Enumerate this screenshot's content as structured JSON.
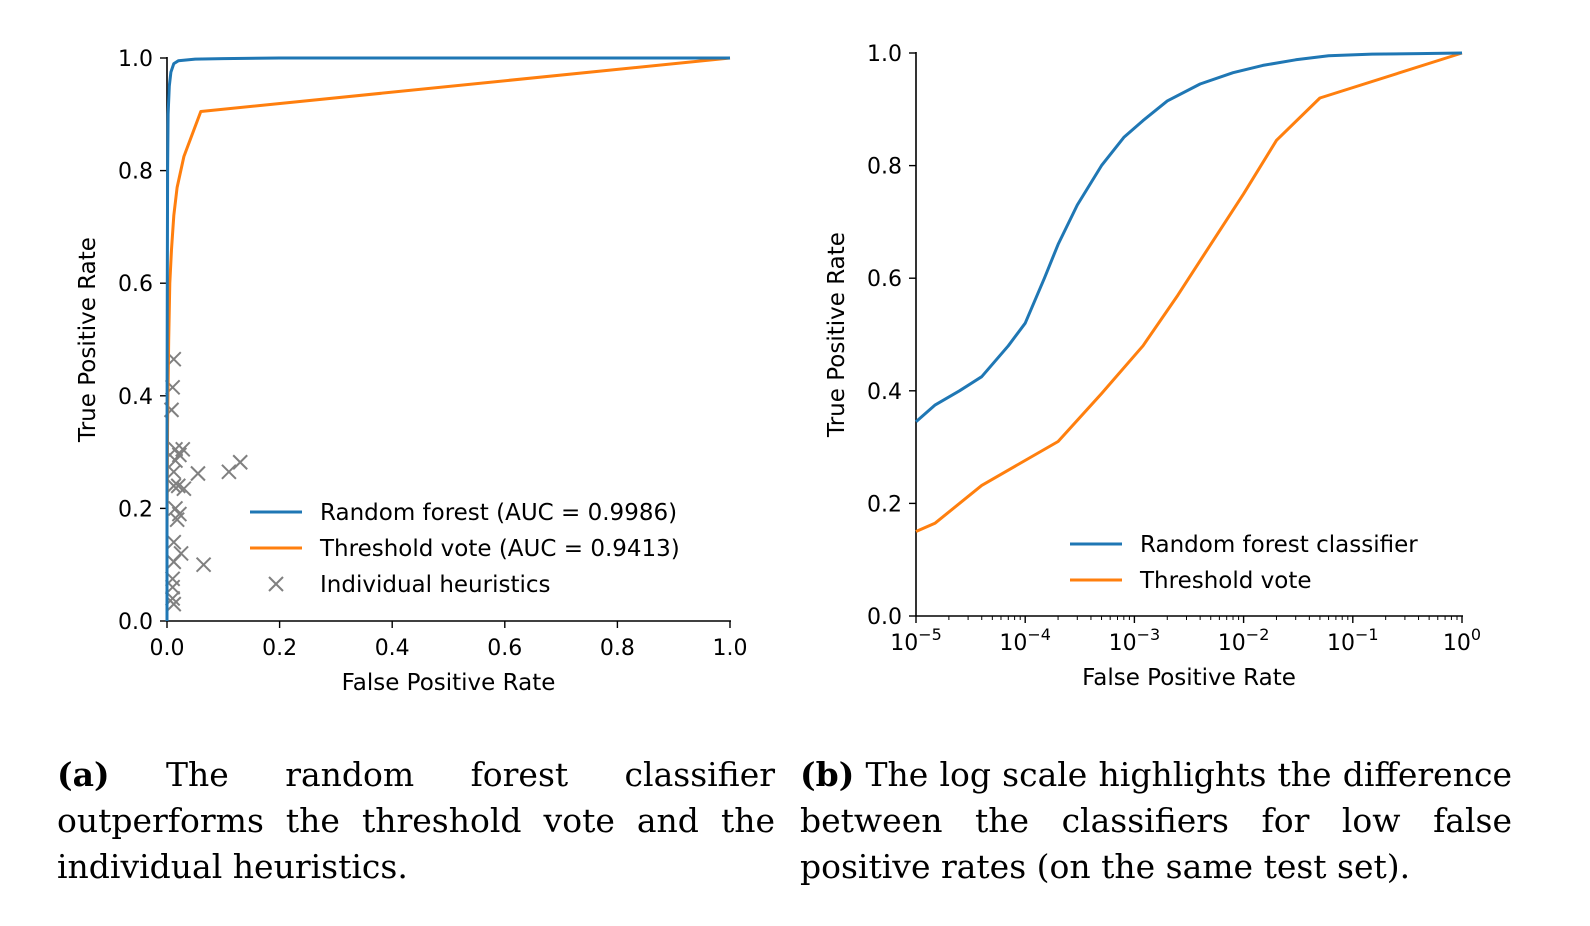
{
  "colors": {
    "blue": "#1f77b4",
    "orange": "#ff7f0e",
    "gray": "#808080"
  },
  "captions": {
    "a": {
      "label": "(a)",
      "text": "The random forest classifier outperforms the threshold vote and the individual heuristics."
    },
    "b": {
      "label": "(b)",
      "text": "The log scale highlights the difference between the classifiers for low false positive rates (on the same test set)."
    }
  },
  "chart_data": [
    {
      "type": "line",
      "xlabel": "False Positive Rate",
      "ylabel": "True Positive Rate",
      "xscale": "linear",
      "xlim": [
        0,
        1
      ],
      "ylim": [
        0,
        1
      ],
      "xticks": [
        "0.0",
        "0.2",
        "0.4",
        "0.6",
        "0.8",
        "1.0"
      ],
      "yticks": [
        "0.0",
        "0.2",
        "0.4",
        "0.6",
        "0.8",
        "1.0"
      ],
      "legend_position": "lower-right",
      "series": [
        {
          "name": "Random forest (AUC = 0.9986)",
          "color": "#1f77b4",
          "points": [
            [
              0,
              0
            ],
            [
              0,
              0.3
            ],
            [
              0.0005,
              0.6
            ],
            [
              0.001,
              0.8
            ],
            [
              0.002,
              0.9
            ],
            [
              0.004,
              0.95
            ],
            [
              0.007,
              0.975
            ],
            [
              0.012,
              0.99
            ],
            [
              0.02,
              0.995
            ],
            [
              0.05,
              0.998
            ],
            [
              0.1,
              0.999
            ],
            [
              0.2,
              1.0
            ],
            [
              1.0,
              1.0
            ]
          ]
        },
        {
          "name": "Threshold vote (AUC = 0.9413)",
          "color": "#ff7f0e",
          "points": [
            [
              0,
              0
            ],
            [
              0,
              0.15
            ],
            [
              0.001,
              0.35
            ],
            [
              0.003,
              0.5
            ],
            [
              0.005,
              0.6
            ],
            [
              0.008,
              0.66
            ],
            [
              0.012,
              0.72
            ],
            [
              0.018,
              0.77
            ],
            [
              0.03,
              0.825
            ],
            [
              0.06,
              0.905
            ],
            [
              1.0,
              1.0
            ]
          ]
        }
      ],
      "scatter": {
        "name": "Individual heuristics",
        "marker": "x",
        "color": "#808080",
        "points": [
          [
            0.012,
            0.465
          ],
          [
            0.01,
            0.415
          ],
          [
            0.008,
            0.375
          ],
          [
            0.015,
            0.305
          ],
          [
            0.028,
            0.305
          ],
          [
            0.022,
            0.295
          ],
          [
            0.015,
            0.285
          ],
          [
            0.012,
            0.265
          ],
          [
            0.055,
            0.262
          ],
          [
            0.11,
            0.265
          ],
          [
            0.13,
            0.282
          ],
          [
            0.012,
            0.24
          ],
          [
            0.02,
            0.24
          ],
          [
            0.03,
            0.235
          ],
          [
            0.015,
            0.2
          ],
          [
            0.022,
            0.19
          ],
          [
            0.018,
            0.18
          ],
          [
            0.012,
            0.14
          ],
          [
            0.025,
            0.12
          ],
          [
            0.012,
            0.105
          ],
          [
            0.065,
            0.1
          ],
          [
            0.01,
            0.075
          ],
          [
            0.01,
            0.06
          ],
          [
            0.01,
            0.04
          ],
          [
            0.012,
            0.03
          ]
        ]
      }
    },
    {
      "type": "line",
      "xlabel": "False Positive Rate",
      "ylabel": "True Positive Rate",
      "xscale": "log",
      "xlim": [
        1e-05,
        1
      ],
      "ylim": [
        0,
        1
      ],
      "xticks": [
        "10^-5",
        "10^-4",
        "10^-3",
        "10^-2",
        "10^-1",
        "10^0"
      ],
      "yticks": [
        "0.0",
        "0.2",
        "0.4",
        "0.6",
        "0.8",
        "1.0"
      ],
      "legend_position": "lower-right",
      "series": [
        {
          "name": "Random forest classifier",
          "color": "#1f77b4",
          "points": [
            [
              1e-05,
              0.345
            ],
            [
              1.5e-05,
              0.375
            ],
            [
              2.5e-05,
              0.4
            ],
            [
              4e-05,
              0.425
            ],
            [
              7e-05,
              0.48
            ],
            [
              0.0001,
              0.52
            ],
            [
              0.00015,
              0.6
            ],
            [
              0.0002,
              0.66
            ],
            [
              0.0003,
              0.73
            ],
            [
              0.0005,
              0.8
            ],
            [
              0.0008,
              0.85
            ],
            [
              0.0012,
              0.88
            ],
            [
              0.002,
              0.915
            ],
            [
              0.004,
              0.945
            ],
            [
              0.008,
              0.965
            ],
            [
              0.015,
              0.978
            ],
            [
              0.03,
              0.988
            ],
            [
              0.06,
              0.995
            ],
            [
              0.15,
              0.998
            ],
            [
              0.4,
              0.999
            ],
            [
              1,
              1.0
            ]
          ]
        },
        {
          "name": "Threshold vote",
          "color": "#ff7f0e",
          "points": [
            [
              1e-05,
              0.15
            ],
            [
              1.5e-05,
              0.165
            ],
            [
              4e-05,
              0.232
            ],
            [
              0.0002,
              0.31
            ],
            [
              0.0005,
              0.395
            ],
            [
              0.0012,
              0.48
            ],
            [
              0.0025,
              0.57
            ],
            [
              0.005,
              0.66
            ],
            [
              0.01,
              0.75
            ],
            [
              0.02,
              0.845
            ],
            [
              0.05,
              0.92
            ],
            [
              1,
              1.0
            ]
          ]
        }
      ]
    }
  ]
}
